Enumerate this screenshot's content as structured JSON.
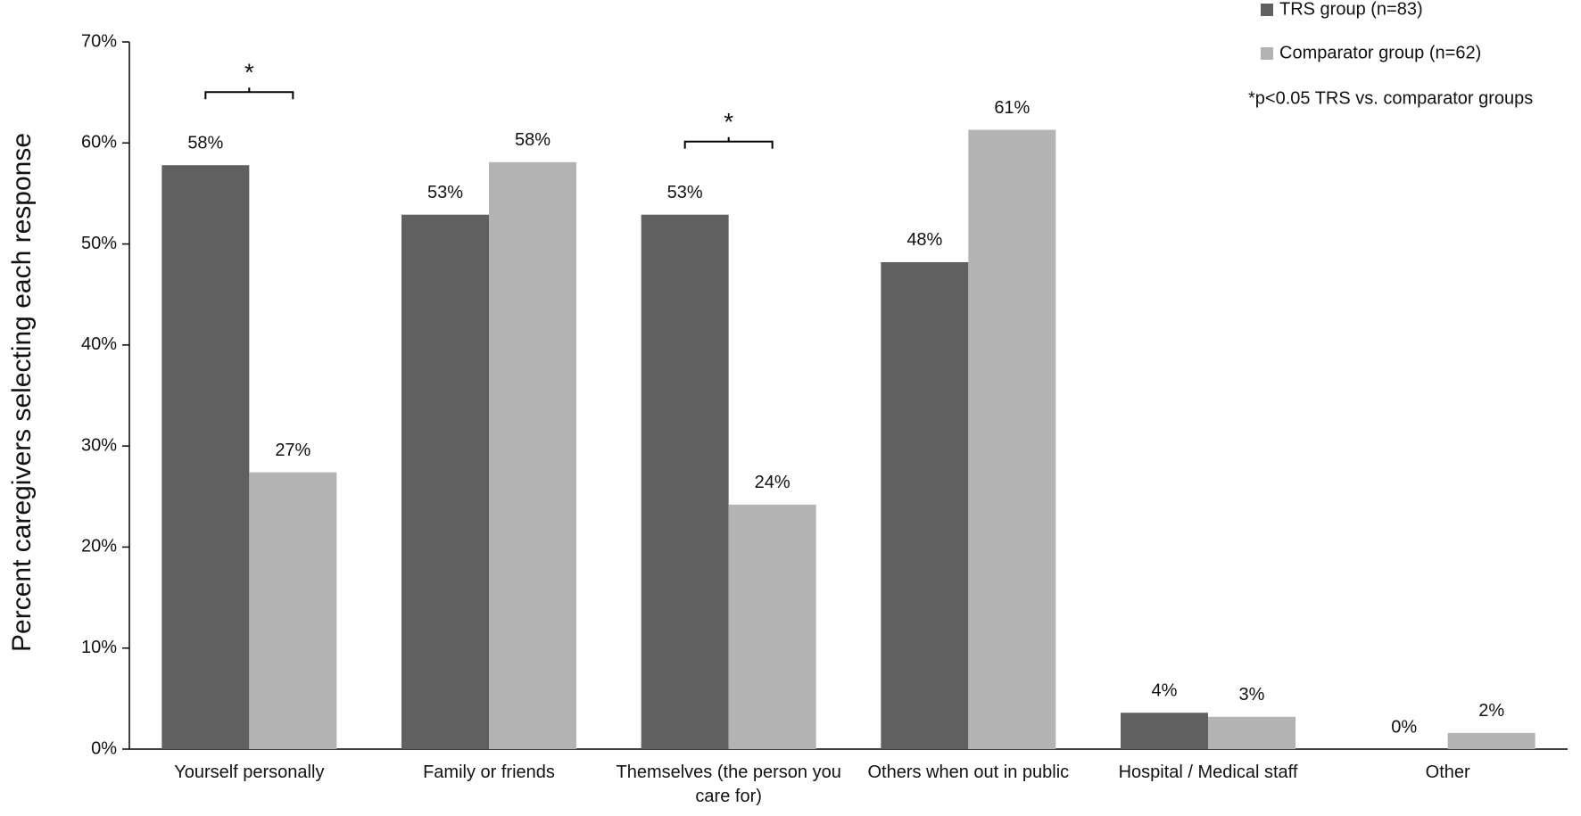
{
  "chart_data": {
    "type": "bar",
    "y_label": "Percent caregivers selecting each response",
    "categories": [
      "Yourself personally",
      "Family or friends",
      "Themselves (the person you care for)",
      "Others when out in public",
      "Hospital / Medical staff",
      "Other"
    ],
    "series": [
      {
        "name": "TRS group (n=83)",
        "color": "#606060",
        "values": [
          57.8,
          52.9,
          52.9,
          48.2,
          3.6,
          0
        ],
        "value_labels": [
          "58%",
          "53%",
          "53%",
          "48%",
          "4%",
          "0%"
        ]
      },
      {
        "name": "Comparator group (n=62)",
        "color": "#b3b3b3",
        "values": [
          27.4,
          58.1,
          24.2,
          61.3,
          3.2,
          1.6
        ],
        "value_labels": [
          "27%",
          "58%",
          "24%",
          "61%",
          "3%",
          "2%"
        ]
      }
    ],
    "significance_labels": [
      "*",
      null,
      "*",
      null,
      null,
      null
    ],
    "note": "*p<0.05 TRS vs. comparator groups",
    "ylim": [
      0,
      70
    ],
    "yticks": [
      {
        "value": 0,
        "label": "0%"
      },
      {
        "value": 10,
        "label": "10%"
      },
      {
        "value": 20,
        "label": "20%"
      },
      {
        "value": 30,
        "label": "30%"
      },
      {
        "value": 40,
        "label": "40%"
      },
      {
        "value": 50,
        "label": "50%"
      },
      {
        "value": 60,
        "label": "60%"
      },
      {
        "value": 70,
        "label": "70%"
      }
    ],
    "grid": false
  }
}
